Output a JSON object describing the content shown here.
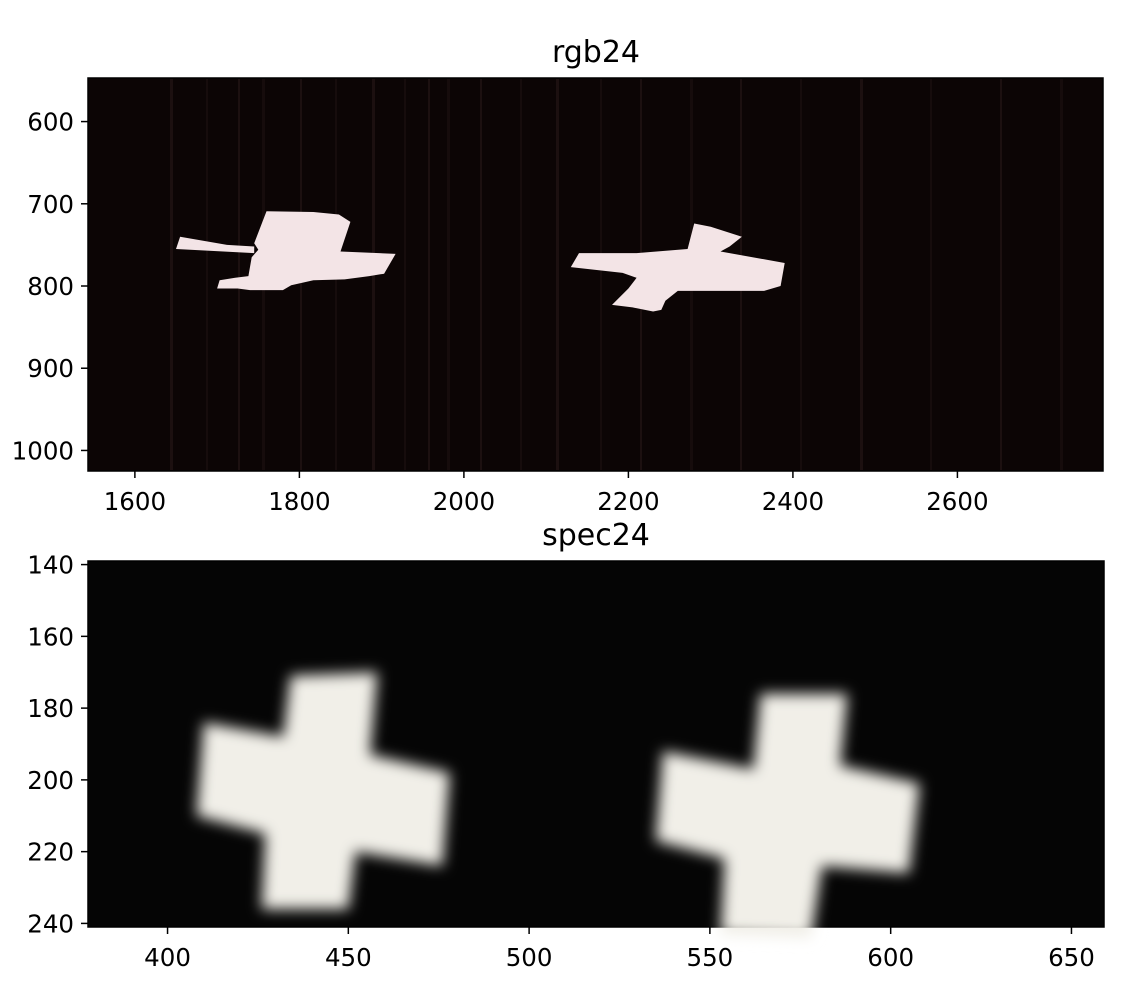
{
  "chart_data": [
    {
      "type": "image",
      "title": "rgb24",
      "xlim": [
        1543,
        2777
      ],
      "ylim": [
        1025,
        547
      ],
      "x_ticks": [
        "1600",
        "1800",
        "2000",
        "2200",
        "2400",
        "2600"
      ],
      "y_ticks": [
        "600",
        "700",
        "800",
        "900",
        "1000"
      ],
      "background_color": "#0c0505",
      "shape_color": "#f3e4e6",
      "grid": false,
      "objects": [
        {
          "name": "cross-left",
          "polygons": [
            [
              [
                1760,
                709
              ],
              [
                1817,
                710
              ],
              [
                1848,
                713
              ],
              [
                1862,
                722
              ],
              [
                1850,
                758
              ],
              [
                1917,
                761
              ],
              [
                1903,
                785
              ],
              [
                1885,
                788
              ],
              [
                1855,
                792
              ],
              [
                1817,
                793
              ],
              [
                1790,
                799
              ],
              [
                1780,
                805
              ],
              [
                1740,
                805
              ],
              [
                1725,
                803
              ],
              [
                1700,
                803
              ],
              [
                1703,
                793
              ],
              [
                1722,
                790
              ],
              [
                1738,
                788
              ],
              [
                1742,
                765
              ],
              [
                1750,
                756
              ],
              [
                1745,
                748
              ]
            ],
            [
              [
                1655,
                740
              ],
              [
                1712,
                750
              ],
              [
                1745,
                752
              ],
              [
                1745,
                760
              ],
              [
                1650,
                755
              ]
            ]
          ]
        },
        {
          "name": "cross-right",
          "polygons": [
            [
              [
                2280,
                724
              ],
              [
                2300,
                728
              ],
              [
                2338,
                740
              ],
              [
                2323,
                752
              ],
              [
                2312,
                758
              ],
              [
                2390,
                772
              ],
              [
                2385,
                800
              ],
              [
                2365,
                806
              ],
              [
                2292,
                806
              ],
              [
                2260,
                806
              ],
              [
                2245,
                818
              ],
              [
                2240,
                829
              ],
              [
                2230,
                831
              ],
              [
                2205,
                826
              ],
              [
                2180,
                823
              ],
              [
                2200,
                803
              ],
              [
                2210,
                790
              ],
              [
                2193,
                784
              ],
              [
                2130,
                777
              ],
              [
                2140,
                760
              ],
              [
                2210,
                760
              ],
              [
                2272,
                755
              ]
            ]
          ]
        }
      ]
    },
    {
      "type": "image",
      "title": "spec24",
      "xlim": [
        378,
        659
      ],
      "ylim": [
        241,
        139
      ],
      "x_ticks": [
        "400",
        "450",
        "500",
        "550",
        "600",
        "650"
      ],
      "y_ticks": [
        "140",
        "160",
        "180",
        "200",
        "220",
        "240"
      ],
      "background_color": "#050505",
      "shape_color": "#f1efe8",
      "grid": false,
      "objects": [
        {
          "name": "cross-left",
          "polygons": [
            [
              [
                434,
                171
              ],
              [
                458,
                170
              ],
              [
                456,
                193
              ],
              [
                478,
                198
              ],
              [
                476,
                224
              ],
              [
                452,
                220
              ],
              [
                450,
                236
              ],
              [
                426,
                236
              ],
              [
                427,
                215
              ],
              [
                408,
                210
              ],
              [
                410,
                184
              ],
              [
                432,
                188
              ]
            ]
          ]
        },
        {
          "name": "cross-right",
          "polygons": [
            [
              [
                564,
                176
              ],
              [
                588,
                176
              ],
              [
                586,
                196
              ],
              [
                608,
                201
              ],
              [
                605,
                226
              ],
              [
                581,
                224
              ],
              [
                578,
                244
              ],
              [
                553,
                243
              ],
              [
                554,
                222
              ],
              [
                535,
                217
              ],
              [
                537,
                192
              ],
              [
                562,
                197
              ]
            ]
          ]
        }
      ]
    }
  ]
}
